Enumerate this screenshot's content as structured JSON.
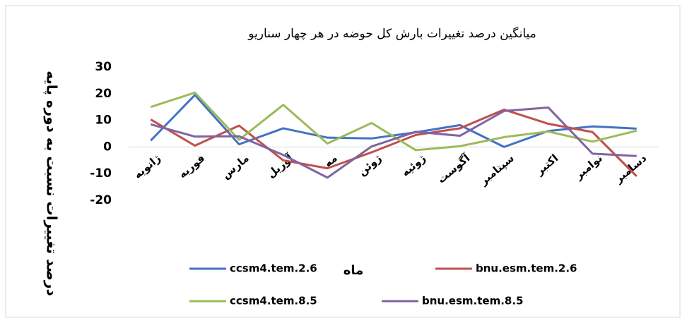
{
  "chart_data": {
    "type": "line",
    "title": "میانگین درصد تغییرات بارش کل حوضه در هر چهار سناریو",
    "y_label": "درصد تغییرات نسبت به دوره پایه",
    "x_label": "ماه",
    "categories": [
      "ژانویه",
      "فوریه",
      "مارس",
      "آوریل",
      "مه",
      "ژوئن",
      "ژوئیه",
      "آگوست",
      "سپتامبر",
      "اکتبر",
      "نوامبر",
      "دسامبر"
    ],
    "series": [
      {
        "name": "ccsm4.tem.2.6",
        "color": "#4472c4",
        "values": [
          2.4,
          19.5,
          1,
          7,
          3.5,
          3.2,
          5.5,
          8.2,
          0,
          6,
          7.7,
          6.9
        ]
      },
      {
        "name": "bnu.esm.tem.2.6",
        "color": "#c0504d",
        "values": [
          10.3,
          0.5,
          8,
          -5,
          -8,
          -2,
          4.5,
          7,
          14,
          8.7,
          5.6,
          -11
        ]
      },
      {
        "name": "ccsm4.tem.8.5",
        "color": "#9bbb59",
        "values": [
          15,
          20.4,
          2.7,
          15.8,
          1.3,
          9,
          -1.2,
          0.3,
          3.7,
          5.8,
          2,
          6.1
        ]
      },
      {
        "name": "bnu.esm.tem.8.5",
        "color": "#8064a2",
        "values": [
          8.5,
          3.9,
          4,
          -3,
          -11.5,
          0.2,
          5.7,
          4.2,
          13.5,
          14.8,
          -2.5,
          -3.4
        ]
      }
    ],
    "ylim": [
      -20,
      30
    ],
    "yticks": [
      -20,
      -10,
      0,
      10,
      20,
      30
    ]
  }
}
